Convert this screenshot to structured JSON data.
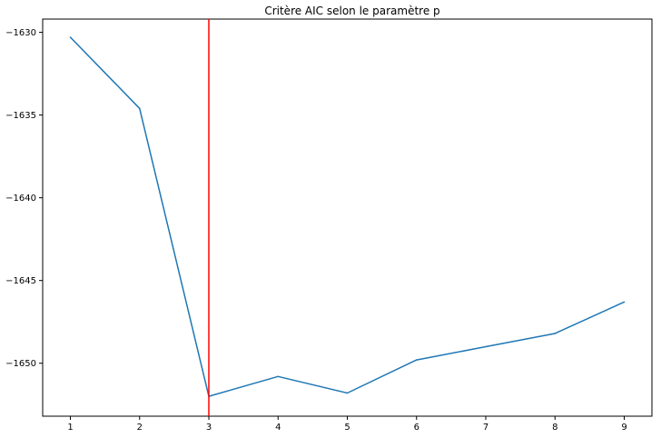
{
  "chart_data": {
    "type": "line",
    "title": "Critère AIC selon le paramètre p",
    "xlabel": "",
    "ylabel": "",
    "x": [
      1,
      2,
      3,
      4,
      5,
      6,
      7,
      8,
      9
    ],
    "series": [
      {
        "values": [
          -1630.3,
          -1634.6,
          -1652.0,
          -1650.8,
          -1651.8,
          -1649.8,
          -1649.0,
          -1648.2,
          -1646.3
        ],
        "color": "#1f77b4"
      }
    ],
    "xlim": [
      0.6,
      9.4
    ],
    "ylim": [
      -1653.2,
      -1629.2
    ],
    "xticks": [
      1,
      2,
      3,
      4,
      5,
      6,
      7,
      8,
      9
    ],
    "yticks": [
      -1650,
      -1645,
      -1640,
      -1635,
      -1630
    ],
    "ytick_labels": [
      "−1650",
      "−1645",
      "−1640",
      "−1635",
      "−1630"
    ],
    "vline": {
      "x": 3,
      "color": "#ff0000"
    },
    "grid": false,
    "legend": "none"
  }
}
